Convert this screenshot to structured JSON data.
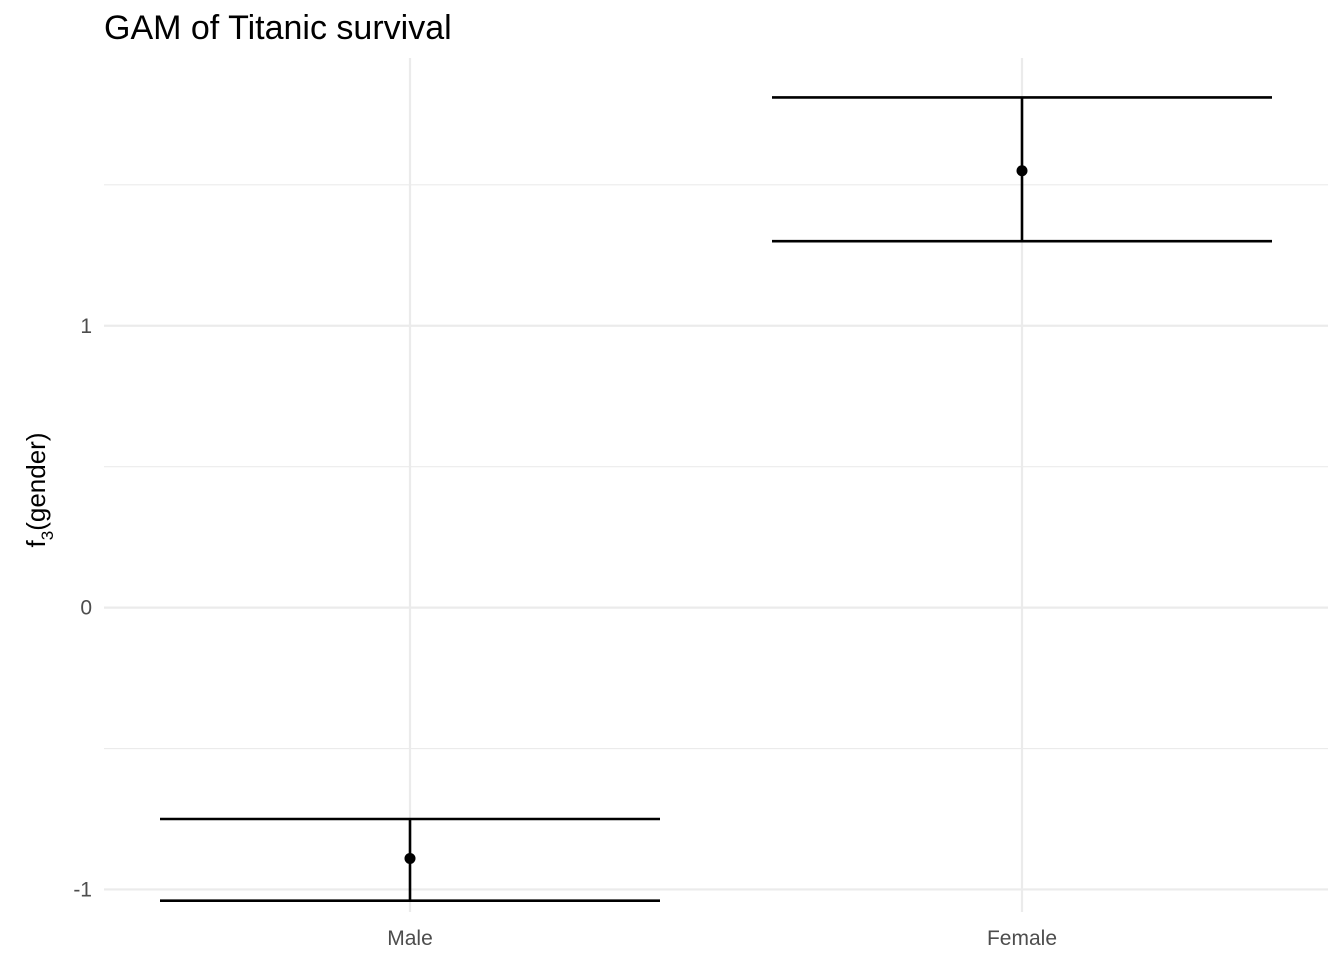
{
  "chart_data": {
    "type": "errorbar",
    "title": "GAM of Titanic survival",
    "xlabel": "",
    "ylabel": "f3(gender)",
    "ylabel_parts": {
      "base": "f",
      "subscript": "3",
      "rest": "(gender)"
    },
    "categories": [
      "Male",
      "Female"
    ],
    "series": [
      {
        "values": [
          -0.89,
          1.55
        ],
        "lower": [
          -1.04,
          1.3
        ],
        "upper": [
          -0.75,
          1.81
        ]
      }
    ],
    "ylim": [
      -1.08,
      1.95
    ],
    "y_ticks": [
      -1,
      0,
      1
    ],
    "y_tick_labels": [
      "-1",
      "0",
      "1"
    ],
    "y_minor_ticks": [
      -0.5,
      0.5,
      1.5
    ],
    "grid": true,
    "legend": "none",
    "colors": {
      "grid": "#ebebeb",
      "ink": "#000000",
      "tick_text": "#4d4d4d",
      "background": "#ffffff"
    }
  }
}
